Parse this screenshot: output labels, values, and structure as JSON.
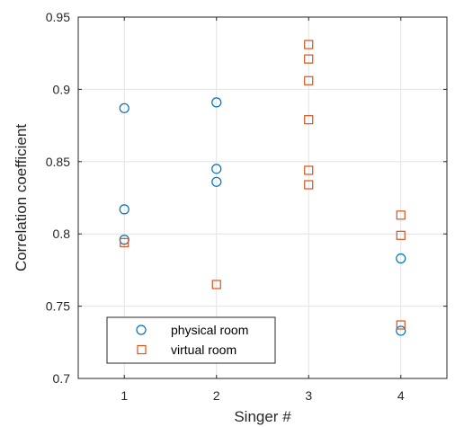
{
  "chart_data": {
    "type": "scatter",
    "title": "",
    "xlabel": "Singer #",
    "ylabel": "Correlation coefficient",
    "xlim": [
      0.5,
      4.5
    ],
    "ylim": [
      0.7,
      0.95
    ],
    "xticks": [
      1,
      2,
      3,
      4
    ],
    "xtick_labels": [
      "1",
      "2",
      "3",
      "4"
    ],
    "yticks": [
      0.7,
      0.75,
      0.8,
      0.85,
      0.9,
      0.95
    ],
    "ytick_labels": [
      "0.7",
      "0.75",
      "0.8",
      "0.85",
      "0.9",
      "0.95"
    ],
    "grid": true,
    "legend_position": "bottom-left",
    "series": [
      {
        "name": "physical room",
        "marker": "circle",
        "color": "#0072BD",
        "points": [
          {
            "x": 1,
            "y": 0.887
          },
          {
            "x": 1,
            "y": 0.817
          },
          {
            "x": 1,
            "y": 0.796
          },
          {
            "x": 2,
            "y": 0.891
          },
          {
            "x": 2,
            "y": 0.845
          },
          {
            "x": 2,
            "y": 0.836
          },
          {
            "x": 4,
            "y": 0.783
          },
          {
            "x": 4,
            "y": 0.733
          }
        ]
      },
      {
        "name": "virtual room",
        "marker": "square",
        "color": "#D95319",
        "points": [
          {
            "x": 1,
            "y": 0.794
          },
          {
            "x": 2,
            "y": 0.765
          },
          {
            "x": 3,
            "y": 0.931
          },
          {
            "x": 3,
            "y": 0.921
          },
          {
            "x": 3,
            "y": 0.906
          },
          {
            "x": 3,
            "y": 0.879
          },
          {
            "x": 3,
            "y": 0.844
          },
          {
            "x": 3,
            "y": 0.834
          },
          {
            "x": 4,
            "y": 0.813
          },
          {
            "x": 4,
            "y": 0.799
          },
          {
            "x": 4,
            "y": 0.737
          }
        ]
      }
    ]
  }
}
